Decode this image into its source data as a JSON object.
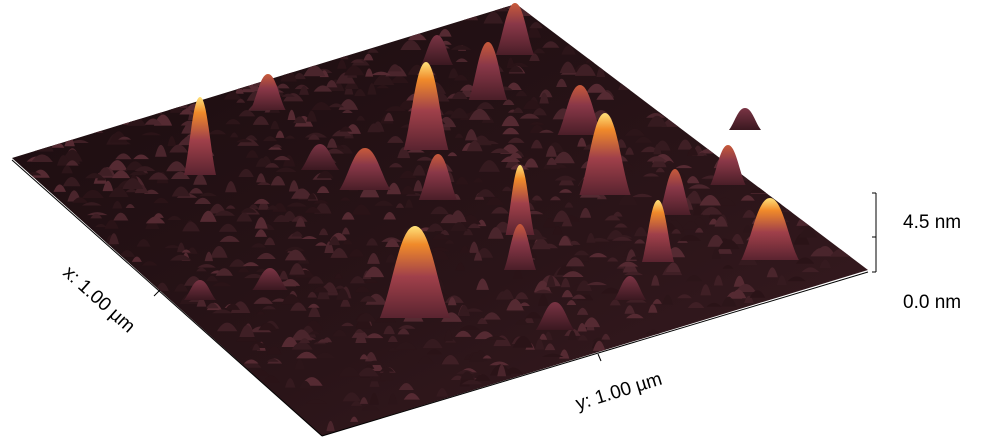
{
  "axes": {
    "x_label": "x: 1.00 µm",
    "y_label": "y: 1.00 µm"
  },
  "z_scale": {
    "top_label": "4.5 nm",
    "bottom_label": "0.0 nm"
  },
  "colors": {
    "background": "#ffffff",
    "surface_dark": "#241216",
    "surface_mid": "#4a2228",
    "peak_low": "#6e2c3a",
    "peak_high": "#f08a2a",
    "peak_top": "#ffe27a"
  }
}
